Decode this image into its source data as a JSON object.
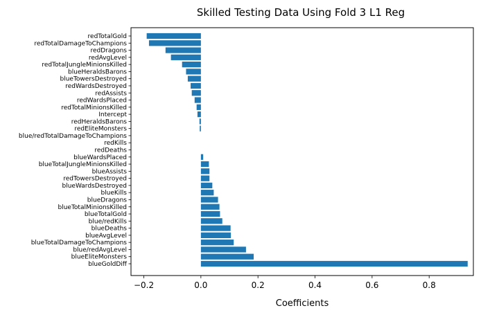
{
  "chart_data": {
    "type": "bar",
    "orientation": "horizontal",
    "title": "Skilled Testing Data Using Fold 3 L1 Reg",
    "xlabel": "Coefficients",
    "ylabel": "",
    "xlim": [
      -0.245,
      0.955
    ],
    "xticks": [
      -0.2,
      0.0,
      0.2,
      0.4,
      0.6,
      0.8
    ],
    "xtick_labels": [
      "−0.2",
      "0.0",
      "0.2",
      "0.4",
      "0.6",
      "0.8"
    ],
    "grid": false,
    "bar_color": "#1f77b4",
    "categories": [
      "redTotalGold",
      "redTotalDamageToChampions",
      "redDragons",
      "redAvgLevel",
      "redTotalJungleMinionsKilled",
      "blueHeraldsBarons",
      "blueTowersDestroyed",
      "redWardsDestroyed",
      "redAssists",
      "redWardsPlaced",
      "redTotalMinionsKilled",
      "Intercept",
      "redHeraldsBarons",
      "redEliteMonsters",
      "blue/redTotalDamageToChampions",
      "redKills",
      "redDeaths",
      "blueWardsPlaced",
      "blueTotalJungleMinionsKilled",
      "blueAssists",
      "redTowersDestroyed",
      "blueWardsDestroyed",
      "blueKills",
      "blueDragons",
      "blueTotalMinionsKilled",
      "blueTotalGold",
      "blue/redKills",
      "blueDeaths",
      "blueAvgLevel",
      "blueTotalDamageToChampions",
      "blue/redAvgLevel",
      "blueEliteMonsters",
      "blueGoldDiff"
    ],
    "values": [
      -0.19,
      -0.182,
      -0.124,
      -0.105,
      -0.066,
      -0.052,
      -0.046,
      -0.036,
      -0.032,
      -0.022,
      -0.015,
      -0.012,
      -0.005,
      -0.004,
      0.0,
      0.0,
      0.0,
      0.008,
      0.028,
      0.03,
      0.03,
      0.04,
      0.045,
      0.06,
      0.065,
      0.067,
      0.075,
      0.104,
      0.105,
      0.115,
      0.158,
      0.185,
      0.935
    ]
  }
}
